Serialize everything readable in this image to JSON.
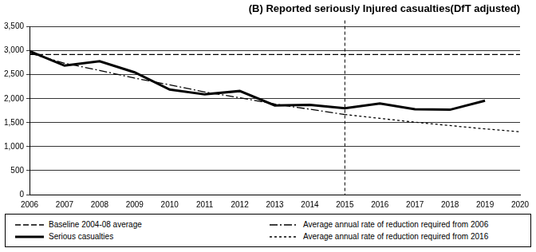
{
  "chart_data": {
    "type": "line",
    "title": "(B) Reported seriously Injured casualties(DfT adjusted)",
    "x": [
      2006,
      2007,
      2008,
      2009,
      2010,
      2011,
      2012,
      2013,
      2014,
      2015,
      2016,
      2017,
      2018,
      2019,
      2020
    ],
    "xlim": [
      2006,
      2020
    ],
    "xticks": [
      2006,
      2007,
      2008,
      2009,
      2010,
      2011,
      2012,
      2013,
      2014,
      2015,
      2016,
      2017,
      2018,
      2019,
      2020
    ],
    "ylim": [
      0,
      3500
    ],
    "yticks": [
      0,
      500,
      {
        "value": 1000,
        "label": "1,000"
      },
      {
        "value": 1500,
        "label": "1,500"
      },
      {
        "value": 2000,
        "label": "2,000"
      },
      {
        "value": 2500,
        "label": "2,500"
      },
      {
        "value": 3000,
        "label": "3,000"
      },
      {
        "value": 3500,
        "label": "3,500"
      }
    ],
    "grid": true,
    "legend": "bottom",
    "vertical_line_x": 2015,
    "series": [
      {
        "name": "Baseline 2004-08 average",
        "color": "#000000",
        "line_style": "dashed",
        "values": [
          2920,
          2920,
          2920,
          2920,
          2920,
          2920,
          2920,
          2920,
          2920,
          2920,
          2920,
          2920,
          2920,
          2920,
          2920
        ]
      },
      {
        "name": "Average annual rate of reduction required from 2006",
        "color": "#000000",
        "line_style": "dashdot",
        "values": [
          2950,
          2740,
          2590,
          2430,
          2290,
          2140,
          2020,
          1890,
          1780,
          1670,
          null,
          null,
          null,
          null,
          null
        ]
      },
      {
        "name": "Serious casualties",
        "color": "#000000",
        "line_style": "solid",
        "values": [
          2990,
          2690,
          2780,
          2550,
          2190,
          2090,
          2160,
          1860,
          1870,
          1800,
          1900,
          1780,
          1770,
          1960,
          null
        ]
      },
      {
        "name": "Average annual rate of reduction required from 2016",
        "color": "#000000",
        "line_style": "shortdashed",
        "values": [
          null,
          null,
          null,
          null,
          null,
          null,
          null,
          null,
          null,
          1670,
          1590,
          1510,
          1440,
          1370,
          1310
        ]
      }
    ]
  }
}
